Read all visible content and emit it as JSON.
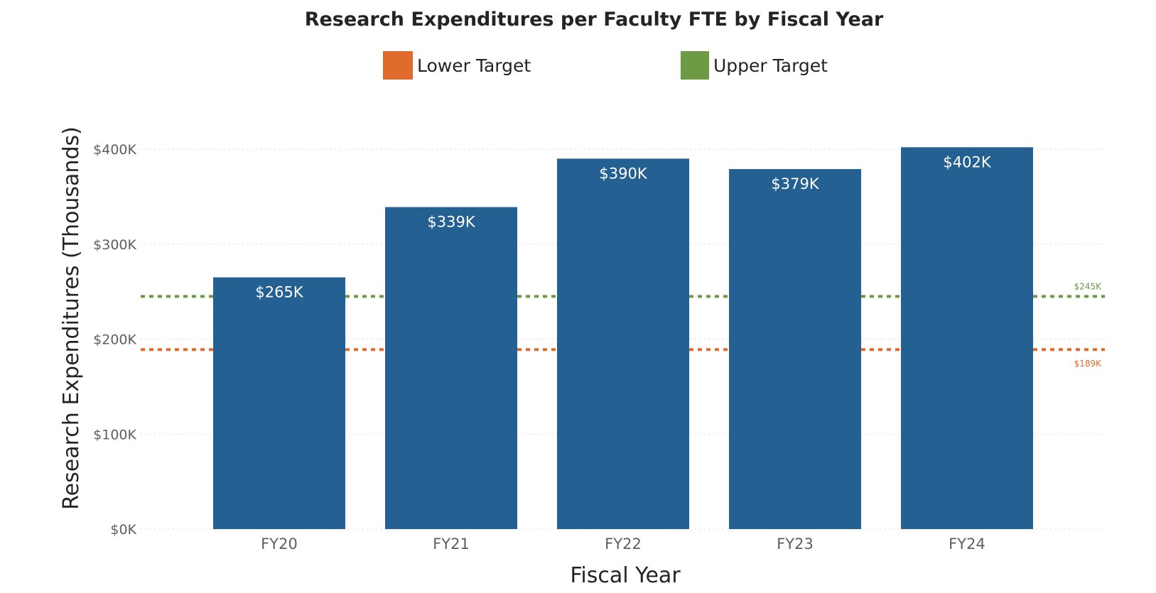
{
  "chart_data": {
    "type": "bar",
    "title": "Research Expenditures per Faculty FTE by Fiscal Year",
    "xlabel": "Fiscal Year",
    "ylabel": "Research Expenditures (Thousands)",
    "categories": [
      "FY20",
      "FY21",
      "FY22",
      "FY23",
      "FY24"
    ],
    "values": [
      265,
      339,
      390,
      379,
      402
    ],
    "data_labels": [
      "$265K",
      "$339K",
      "$390K",
      "$379K",
      "$402K"
    ],
    "ylim": [
      0,
      400
    ],
    "yticks": [
      0,
      100,
      200,
      300,
      400
    ],
    "ytick_labels": [
      "$0K",
      "$100K",
      "$200K",
      "$300K",
      "$400K"
    ],
    "grid": true,
    "bar_color": "#246192",
    "legend_position": "top",
    "reference_lines": [
      {
        "name": "Lower Target",
        "value": 189,
        "label": "$189K",
        "color": "#E06B2D",
        "style": "dotted"
      },
      {
        "name": "Upper Target",
        "value": 245,
        "label": "$245K",
        "color": "#6E9A45",
        "style": "dotted"
      }
    ]
  }
}
